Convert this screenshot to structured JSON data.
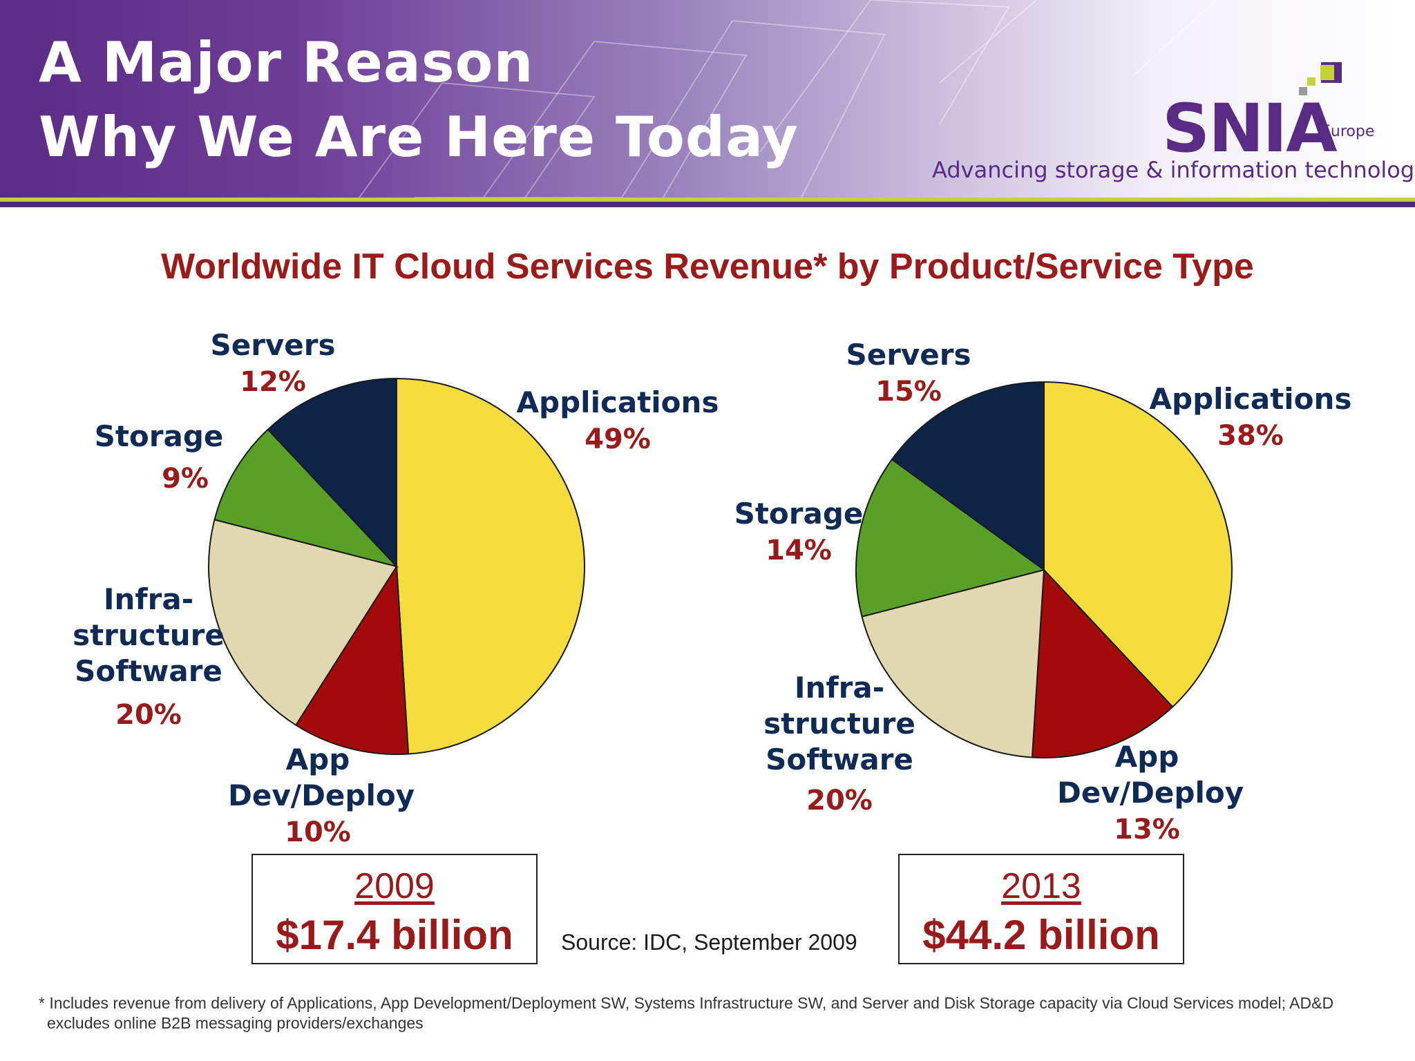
{
  "slide": {
    "title_line1": "A Major Reason",
    "title_line2": "Why We Are Here Today"
  },
  "logo": {
    "word": "SNIA",
    "region": "Europe",
    "tagline": "Advancing storage & information technology",
    "colors": {
      "purple": "#5a2b85",
      "green": "#c4d23b",
      "grey": "#9a9a9a"
    }
  },
  "chart_title": "Worldwide IT Cloud Services Revenue* by Product/Service Type",
  "chart_data": [
    {
      "type": "pie",
      "year": "2009",
      "total": "$17.4 billion",
      "slices": [
        {
          "name": "Applications",
          "value": 49,
          "label": "49%",
          "color": "#f4dd3d"
        },
        {
          "name": "App Dev/Deploy",
          "value": 10,
          "label": "10%",
          "color": "#a30b0b"
        },
        {
          "name": "Infrastructure Software",
          "value": 20,
          "label": "20%",
          "color": "#e0d8b0"
        },
        {
          "name": "Storage",
          "value": 9,
          "label": "9%",
          "color": "#58a028"
        },
        {
          "name": "Servers",
          "value": 12,
          "label": "12%",
          "color": "#0e2447"
        }
      ]
    },
    {
      "type": "pie",
      "year": "2013",
      "total": "$44.2 billion",
      "slices": [
        {
          "name": "Applications",
          "value": 38,
          "label": "38%",
          "color": "#f4dd3d"
        },
        {
          "name": "App Dev/Deploy",
          "value": 13,
          "label": "13%",
          "color": "#a30b0b"
        },
        {
          "name": "Infrastructure Software",
          "value": 20,
          "label": "20%",
          "color": "#e0d8b0"
        },
        {
          "name": "Storage",
          "value": 14,
          "label": "14%",
          "color": "#58a028"
        },
        {
          "name": "Servers",
          "value": 15,
          "label": "15%",
          "color": "#0e2447"
        }
      ]
    }
  ],
  "pie_labels": {
    "chart1": {
      "servers": {
        "name": "Servers",
        "pct": "12%"
      },
      "applications": {
        "name": "Applications",
        "pct": "49%"
      },
      "storage": {
        "name": "Storage",
        "pct": "9%"
      },
      "infra": {
        "line1": "Infra-",
        "line2": "structure",
        "line3": "Software",
        "pct": "20%"
      },
      "appdev": {
        "line1": "App",
        "line2": "Dev/Deploy",
        "pct": "10%"
      }
    },
    "chart2": {
      "servers": {
        "name": "Servers",
        "pct": "15%"
      },
      "applications": {
        "name": "Applications",
        "pct": "38%"
      },
      "storage": {
        "name": "Storage",
        "pct": "14%"
      },
      "infra": {
        "line1": "Infra-",
        "line2": "structure",
        "line3": "Software",
        "pct": "20%"
      },
      "appdev": {
        "line1": "App",
        "line2": "Dev/Deploy",
        "pct": "13%"
      }
    }
  },
  "boxes": {
    "left": {
      "year": "2009",
      "amount": "$17.4 billion"
    },
    "right": {
      "year": "2013",
      "amount": "$44.2 billion"
    }
  },
  "source": "Source: IDC, September 2009",
  "footnote": "* Includes revenue from delivery of Applications, App Development/Deployment SW, Systems Infrastructure SW, and Server and Disk Storage capacity via Cloud Services model; AD&D excludes online B2B messaging providers/exchanges"
}
